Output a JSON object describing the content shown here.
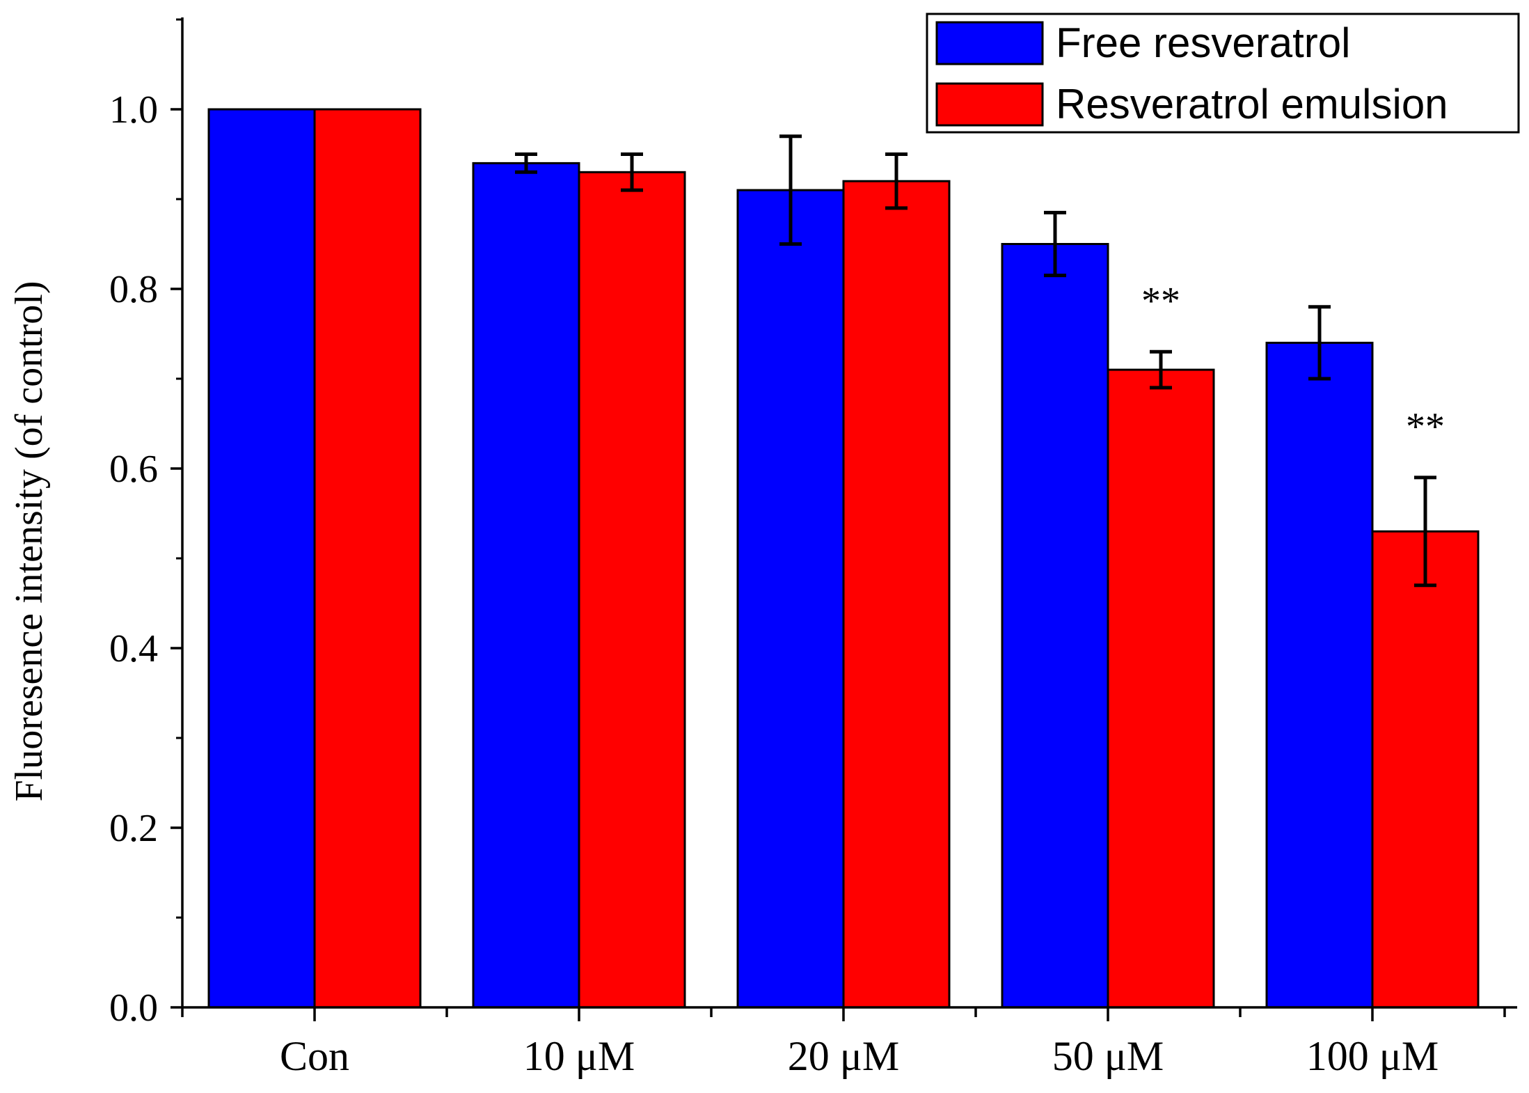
{
  "chart_data": {
    "type": "bar",
    "ylabel": "Fluoresence intensity (of control)",
    "xlabel": "",
    "categories": [
      "Con",
      "10 μM",
      "20 μM",
      "50 μM",
      "100 μM"
    ],
    "ylim": [
      0.0,
      1.1
    ],
    "yticks": [
      0.0,
      0.2,
      0.4,
      0.6,
      0.8,
      1.0
    ],
    "ytick_labels": [
      "0.0",
      "0.2",
      "0.4",
      "0.6",
      "0.8",
      "1.0"
    ],
    "minor_yticks": true,
    "grid": false,
    "legend_position": "top-right",
    "series": [
      {
        "name": "Free resveratrol",
        "color": "#0000ff",
        "values": [
          1.0,
          0.94,
          0.91,
          0.85,
          0.74
        ],
        "errors": [
          0,
          0.01,
          0.06,
          0.035,
          0.04
        ]
      },
      {
        "name": "Resveratrol emulsion",
        "color": "#ff0000",
        "values": [
          1.0,
          0.93,
          0.92,
          0.71,
          0.53
        ],
        "errors": [
          0,
          0.02,
          0.03,
          0.02,
          0.06
        ]
      }
    ],
    "annotations": [
      {
        "category_index": 3,
        "series_index": 1,
        "text": "**"
      },
      {
        "category_index": 4,
        "series_index": 1,
        "text": "**"
      }
    ]
  }
}
